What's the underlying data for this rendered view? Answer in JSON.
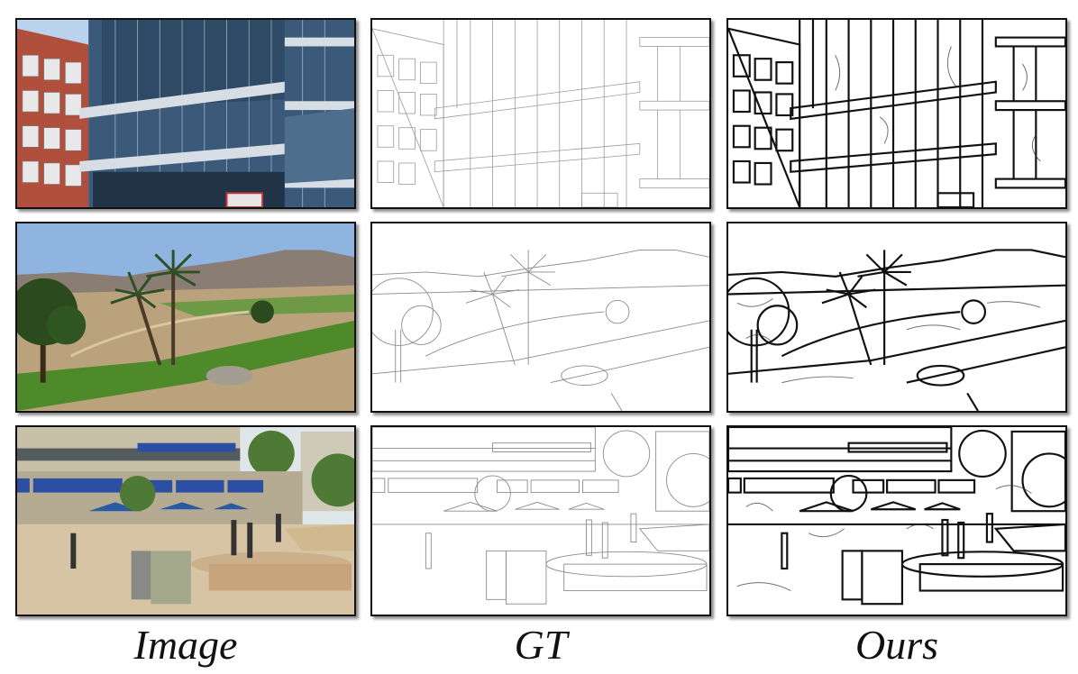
{
  "columns": [
    {
      "label": "Image"
    },
    {
      "label": "GT"
    },
    {
      "label": "Ours"
    }
  ],
  "rows": [
    {
      "scene": "building"
    },
    {
      "scene": "landscape"
    },
    {
      "scene": "plaza"
    }
  ],
  "colors": {
    "sky_building": "#b9d3ee",
    "glass": "#3b5a7a",
    "brick": "#b0503c",
    "sky_landscape": "#8fb4e0",
    "mountain": "#8a7e74",
    "dirt": "#b9a27c",
    "grass": "#4e8a2a",
    "awning": "#2c4fa3"
  }
}
